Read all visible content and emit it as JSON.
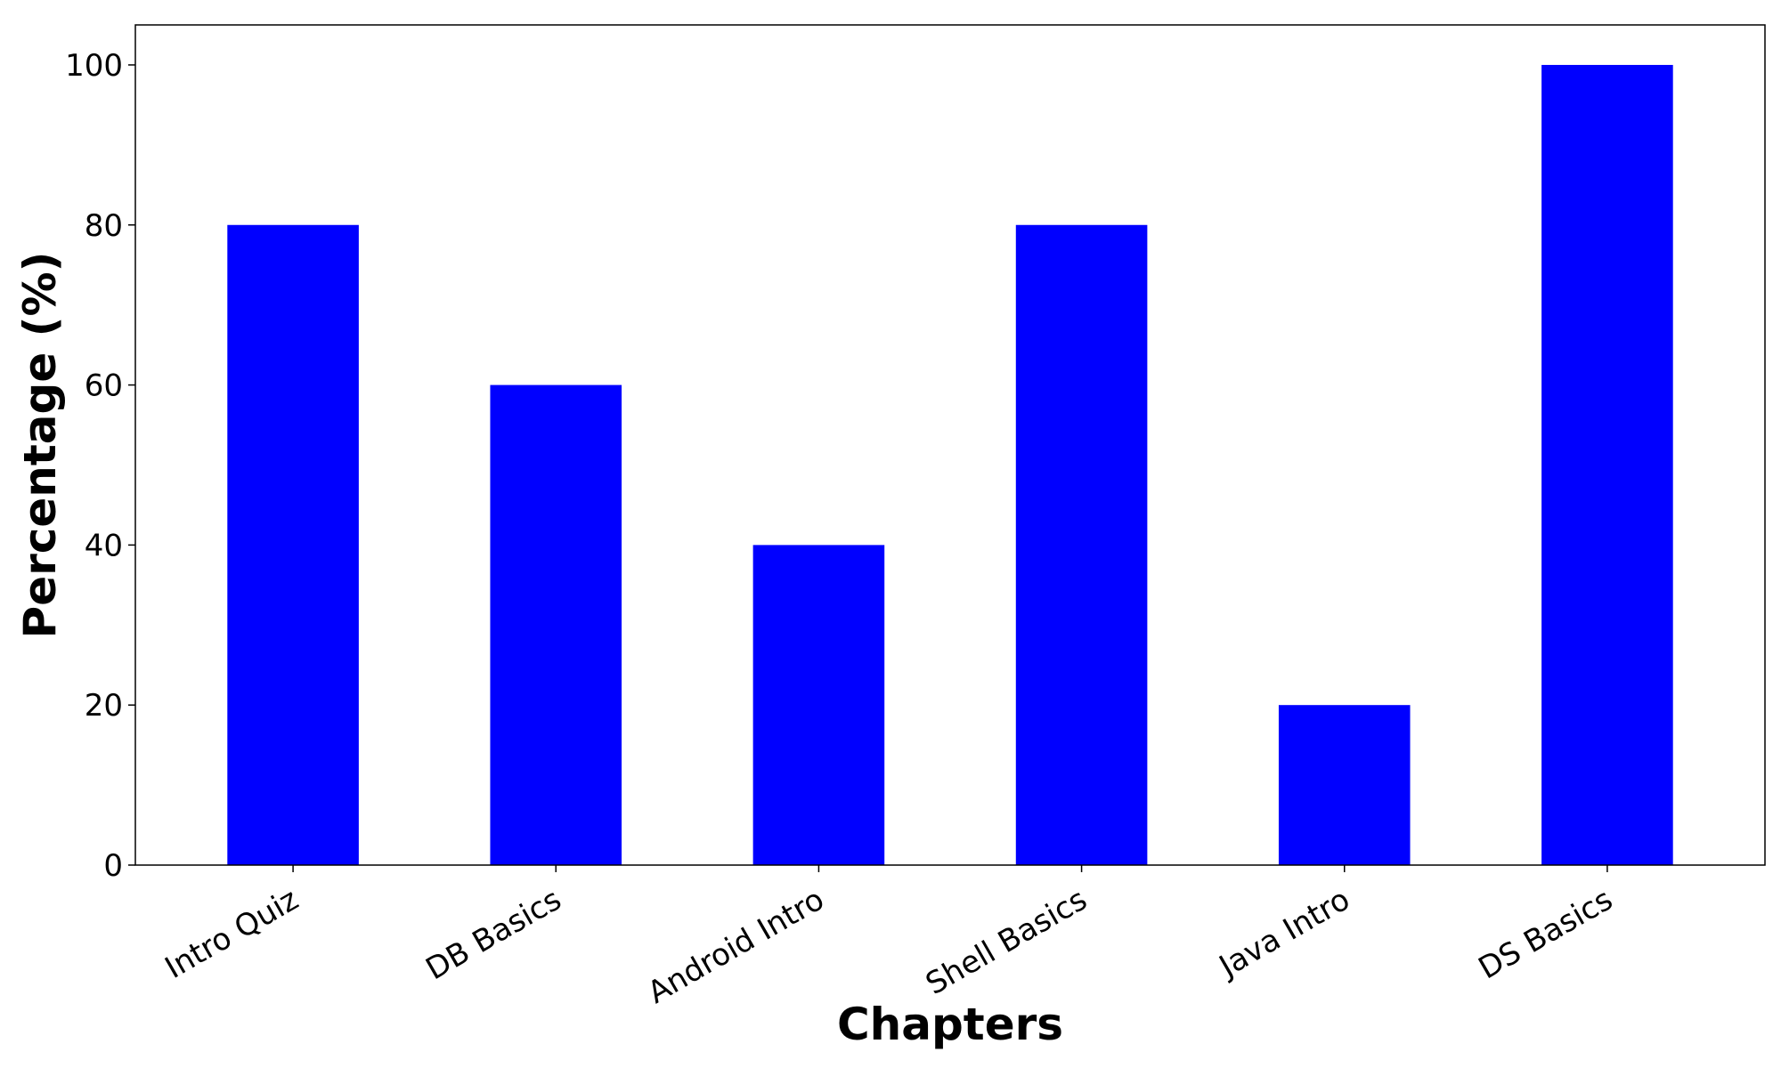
{
  "chart_data": {
    "type": "bar",
    "title": "",
    "xlabel": "Chapters",
    "ylabel": "Percentage (%)",
    "categories": [
      "Intro Quiz",
      "DB Basics",
      "Android Intro",
      "Shell Basics",
      "Java Intro",
      "DS Basics"
    ],
    "values": [
      80,
      60,
      40,
      80,
      20,
      100
    ],
    "ylim": [
      0,
      105
    ],
    "yticks": [
      0,
      20,
      40,
      60,
      80,
      100
    ],
    "bar_color": "#0000ff",
    "grid": false,
    "legend": "none"
  }
}
